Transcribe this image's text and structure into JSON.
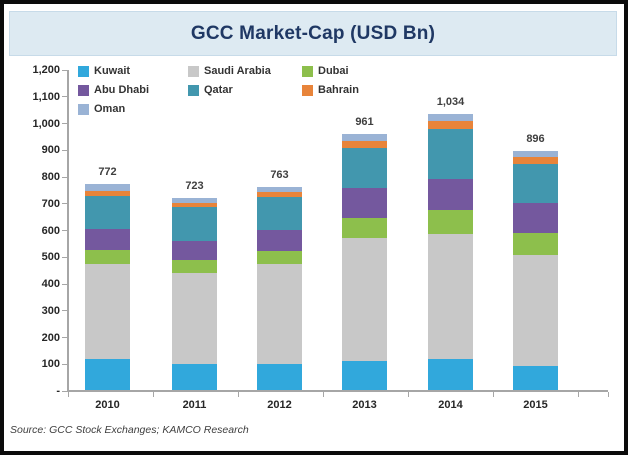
{
  "title": "GCC Market-Cap (USD Bn)",
  "source_note": "Source: GCC Stock Exchanges; KAMCO Research",
  "colors": {
    "title_band_bg": "#ddeaf2",
    "title_text": "#1f3864",
    "axis": "#a6a6a6",
    "label_text": "#262626",
    "frame_border": "#0b0b0b"
  },
  "chart_data": {
    "type": "bar",
    "stacked": true,
    "title": "GCC Market-Cap (USD Bn)",
    "xlabel": "",
    "ylabel": "",
    "grid": false,
    "legend_position": "top-left-inside",
    "categories": [
      "2010",
      "2011",
      "2012",
      "2013",
      "2014",
      "2015"
    ],
    "totals": [
      772,
      723,
      763,
      961,
      1034,
      896
    ],
    "totals_labels": [
      "772",
      "723",
      "763",
      "961",
      "1,034",
      "896"
    ],
    "series": [
      {
        "name": "Kuwait",
        "color": "#31a8dc",
        "values": [
          120,
          101,
          101,
          112,
          118,
          94
        ]
      },
      {
        "name": "Saudi Arabia",
        "color": "#c8c8c8",
        "values": [
          353,
          339,
          373,
          460,
          470,
          415
        ]
      },
      {
        "name": "Dubai",
        "color": "#8dbf4c",
        "values": [
          55,
          49,
          51,
          73,
          90,
          82
        ]
      },
      {
        "name": "Abu Dhabi",
        "color": "#74589e",
        "values": [
          77,
          72,
          76,
          115,
          116,
          111
        ]
      },
      {
        "name": "Qatar",
        "color": "#4297ae",
        "values": [
          124,
          125,
          126,
          150,
          184,
          147
        ]
      },
      {
        "name": "Bahrain",
        "color": "#e8843a",
        "values": [
          20,
          17,
          16,
          26,
          30,
          27
        ]
      },
      {
        "name": "Oman",
        "color": "#9ab3d5",
        "values": [
          23,
          20,
          20,
          25,
          26,
          20
        ]
      }
    ],
    "ylim": [
      0,
      1200
    ],
    "ytick_step": 100,
    "ytick_labels": [
      "-",
      "100",
      "200",
      "300",
      "400",
      "500",
      "600",
      "700",
      "800",
      "900",
      "1,000",
      "1,100",
      "1,200"
    ]
  }
}
